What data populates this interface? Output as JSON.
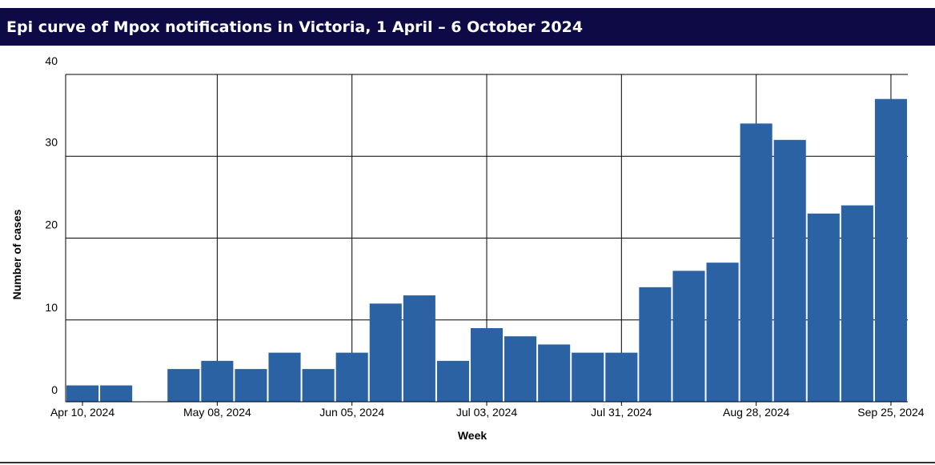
{
  "chart_data": {
    "type": "bar",
    "title": "Epi curve of Mpox notifications in Victoria, 1 April – 6 October 2024",
    "xlabel": "Week",
    "ylabel": "Number of cases",
    "ylim": [
      0,
      40
    ],
    "yticks": [
      0,
      10,
      20,
      30,
      40
    ],
    "xtick_labels": [
      {
        "label": "Apr 10, 2024",
        "index": 0.5
      },
      {
        "label": "May 08, 2024",
        "index": 4.5
      },
      {
        "label": "Jun 05, 2024",
        "index": 8.5
      },
      {
        "label": "Jul 03, 2024",
        "index": 12.5
      },
      {
        "label": "Jul 31, 2024",
        "index": 16.5
      },
      {
        "label": "Aug 28, 2024",
        "index": 20.5
      },
      {
        "label": "Sep 25, 2024",
        "index": 24.5
      }
    ],
    "values": [
      2,
      2,
      0,
      4,
      5,
      4,
      6,
      4,
      6,
      12,
      13,
      5,
      9,
      8,
      7,
      6,
      6,
      14,
      16,
      17,
      34,
      32,
      23,
      24,
      37
    ],
    "bar_color": "#2b62a3",
    "grid": true
  }
}
